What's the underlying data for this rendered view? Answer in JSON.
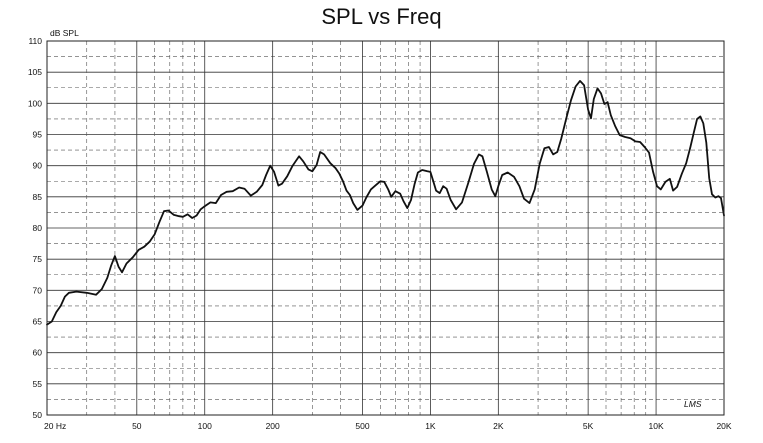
{
  "chart_data": {
    "type": "line",
    "title": "SPL vs Freq",
    "ylabel": "dB SPL",
    "xscale": "log",
    "xlim": [
      20,
      20000
    ],
    "ylim": [
      50,
      110
    ],
    "grid": true,
    "y_ticks": [
      50,
      55,
      60,
      65,
      70,
      75,
      80,
      85,
      90,
      95,
      100,
      105,
      110
    ],
    "x_ticks": [
      {
        "value": 20,
        "label": "20  Hz"
      },
      {
        "value": 50,
        "label": "50"
      },
      {
        "value": 100,
        "label": "100"
      },
      {
        "value": 200,
        "label": "200"
      },
      {
        "value": 500,
        "label": "500"
      },
      {
        "value": 1000,
        "label": "1K"
      },
      {
        "value": 2000,
        "label": "2K"
      },
      {
        "value": 5000,
        "label": "5K"
      },
      {
        "value": 10000,
        "label": "10K"
      },
      {
        "value": 20000,
        "label": "20K"
      }
    ],
    "logo": "LMS",
    "series": [
      {
        "color": "#111111",
        "points": [
          [
            20,
            64.5
          ],
          [
            21,
            65.0
          ],
          [
            22,
            66.5
          ],
          [
            23,
            67.5
          ],
          [
            24,
            69.0
          ],
          [
            25,
            69.6
          ],
          [
            27,
            69.8
          ],
          [
            30,
            69.6
          ],
          [
            33,
            69.3
          ],
          [
            35,
            70.2
          ],
          [
            37,
            72.0
          ],
          [
            38.5,
            74.0
          ],
          [
            40,
            75.5
          ],
          [
            41.5,
            73.8
          ],
          [
            43,
            72.9
          ],
          [
            45,
            74.3
          ],
          [
            48,
            75.3
          ],
          [
            51,
            76.5
          ],
          [
            54,
            77.0
          ],
          [
            57,
            77.8
          ],
          [
            60,
            79.0
          ],
          [
            63,
            81.0
          ],
          [
            66,
            82.7
          ],
          [
            69,
            82.8
          ],
          [
            73,
            82.1
          ],
          [
            77,
            81.9
          ],
          [
            80,
            81.8
          ],
          [
            84,
            82.2
          ],
          [
            88,
            81.6
          ],
          [
            92,
            82.0
          ],
          [
            96,
            83.0
          ],
          [
            100,
            83.5
          ],
          [
            106,
            84.1
          ],
          [
            112,
            84.0
          ],
          [
            118,
            85.3
          ],
          [
            125,
            85.8
          ],
          [
            133,
            85.9
          ],
          [
            142,
            86.5
          ],
          [
            150,
            86.3
          ],
          [
            160,
            85.2
          ],
          [
            170,
            85.8
          ],
          [
            180,
            86.9
          ],
          [
            187,
            88.5
          ],
          [
            195,
            90.0
          ],
          [
            203,
            89.0
          ],
          [
            212,
            86.8
          ],
          [
            220,
            87.1
          ],
          [
            232,
            88.3
          ],
          [
            245,
            90.0
          ],
          [
            262,
            91.5
          ],
          [
            273,
            90.7
          ],
          [
            288,
            89.4
          ],
          [
            300,
            89.1
          ],
          [
            313,
            90.1
          ],
          [
            325,
            92.2
          ],
          [
            338,
            91.8
          ],
          [
            360,
            90.4
          ],
          [
            380,
            89.6
          ],
          [
            395,
            88.7
          ],
          [
            410,
            87.5
          ],
          [
            425,
            86.0
          ],
          [
            440,
            85.3
          ],
          [
            455,
            84.0
          ],
          [
            475,
            82.9
          ],
          [
            500,
            83.6
          ],
          [
            520,
            84.9
          ],
          [
            545,
            86.2
          ],
          [
            570,
            86.8
          ],
          [
            600,
            87.5
          ],
          [
            625,
            87.4
          ],
          [
            650,
            86.2
          ],
          [
            670,
            85.0
          ],
          [
            700,
            85.9
          ],
          [
            735,
            85.5
          ],
          [
            760,
            84.3
          ],
          [
            790,
            83.2
          ],
          [
            820,
            84.5
          ],
          [
            850,
            87.0
          ],
          [
            880,
            88.9
          ],
          [
            920,
            89.3
          ],
          [
            970,
            89.1
          ],
          [
            1000,
            89.0
          ],
          [
            1030,
            87.5
          ],
          [
            1060,
            86.0
          ],
          [
            1100,
            85.6
          ],
          [
            1140,
            86.7
          ],
          [
            1180,
            86.3
          ],
          [
            1230,
            84.5
          ],
          [
            1300,
            83.0
          ],
          [
            1380,
            84.1
          ],
          [
            1470,
            87.2
          ],
          [
            1560,
            90.3
          ],
          [
            1640,
            91.8
          ],
          [
            1700,
            91.5
          ],
          [
            1780,
            89.0
          ],
          [
            1870,
            86.2
          ],
          [
            1940,
            85.1
          ],
          [
            2000,
            86.7
          ],
          [
            2080,
            88.5
          ],
          [
            2200,
            88.9
          ],
          [
            2350,
            88.2
          ],
          [
            2480,
            86.7
          ],
          [
            2600,
            84.7
          ],
          [
            2750,
            84.0
          ],
          [
            2900,
            86.2
          ],
          [
            3050,
            90.3
          ],
          [
            3200,
            92.8
          ],
          [
            3350,
            93.0
          ],
          [
            3500,
            91.8
          ],
          [
            3650,
            92.2
          ],
          [
            3800,
            94.3
          ],
          [
            4000,
            97.6
          ],
          [
            4200,
            100.5
          ],
          [
            4400,
            102.7
          ],
          [
            4600,
            103.6
          ],
          [
            4800,
            102.9
          ],
          [
            5000,
            99.0
          ],
          [
            5150,
            97.6
          ],
          [
            5300,
            100.7
          ],
          [
            5500,
            102.4
          ],
          [
            5700,
            101.6
          ],
          [
            5900,
            99.9
          ],
          [
            6100,
            100.2
          ],
          [
            6300,
            98.1
          ],
          [
            6600,
            96.3
          ],
          [
            6900,
            94.9
          ],
          [
            7300,
            94.6
          ],
          [
            7700,
            94.4
          ],
          [
            8100,
            93.9
          ],
          [
            8500,
            93.8
          ],
          [
            8900,
            93.0
          ],
          [
            9300,
            92.1
          ],
          [
            9700,
            89.0
          ],
          [
            10100,
            86.7
          ],
          [
            10500,
            86.2
          ],
          [
            11000,
            87.4
          ],
          [
            11500,
            87.9
          ],
          [
            11900,
            86.0
          ],
          [
            12400,
            86.6
          ],
          [
            13000,
            88.7
          ],
          [
            13600,
            90.4
          ],
          [
            14200,
            93.0
          ],
          [
            14700,
            95.3
          ],
          [
            15200,
            97.5
          ],
          [
            15700,
            97.9
          ],
          [
            16200,
            96.8
          ],
          [
            16700,
            93.7
          ],
          [
            17200,
            88.0
          ],
          [
            17700,
            85.4
          ],
          [
            18300,
            84.9
          ],
          [
            18900,
            85.1
          ],
          [
            19400,
            84.8
          ],
          [
            20000,
            82.0
          ]
        ]
      }
    ]
  }
}
